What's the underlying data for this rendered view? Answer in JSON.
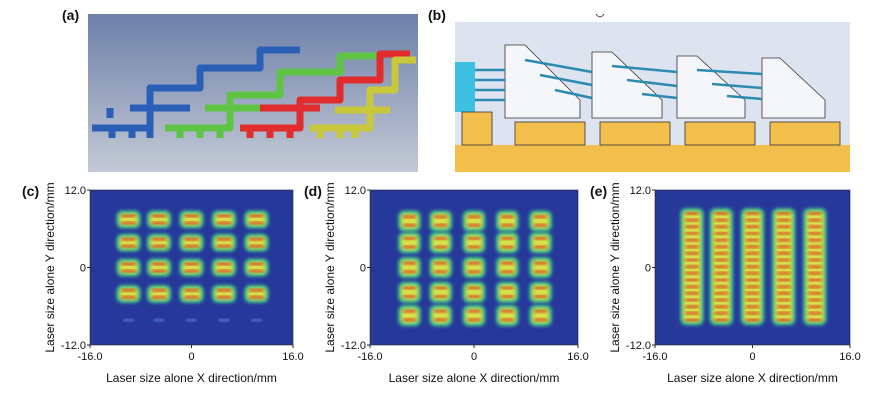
{
  "panels": {
    "a": {
      "label": "(a)"
    },
    "b": {
      "label": "(b)"
    },
    "plots": [
      {
        "label": "(c)",
        "x_label": "Laser size alone X direction/mm",
        "y_label": "Laser size alone Y direction/mm",
        "xlim": [
          -16,
          16
        ],
        "ylim": [
          -12,
          12
        ],
        "xticks": [
          {
            "value": -16,
            "label": "-16.0"
          },
          0,
          {
            "value": 16,
            "label": "16.0"
          }
        ],
        "yticks": [
          {
            "value": -12,
            "label": "-12.0"
          },
          0,
          {
            "value": 12,
            "label": "12.0"
          }
        ]
      },
      {
        "label": "(d)",
        "x_label": "Laser size alone X direction/mm",
        "y_label": "Laser size alone Y direction/mm",
        "xlim": [
          -16,
          16
        ],
        "ylim": [
          -12,
          12
        ],
        "xticks": [
          {
            "value": -16,
            "label": "-16.0"
          },
          0,
          {
            "value": 16,
            "label": "16.0"
          }
        ],
        "yticks": [
          {
            "value": -12,
            "label": "-12.0"
          },
          0,
          {
            "value": 12,
            "label": "12.0"
          }
        ]
      },
      {
        "label": "(e)",
        "x_label": "Laser size alone X direction/mm",
        "y_label": "Laser size alone Y direction/mm",
        "xlim": [
          -16,
          16
        ],
        "ylim": [
          -12,
          12
        ],
        "xticks": [
          {
            "value": -16,
            "label": "-16.0"
          },
          0,
          {
            "value": 16,
            "label": "16.0"
          }
        ],
        "yticks": [
          {
            "value": -12,
            "label": "-12.0"
          },
          0,
          {
            "value": 12,
            "label": "12.0"
          }
        ]
      }
    ]
  }
}
